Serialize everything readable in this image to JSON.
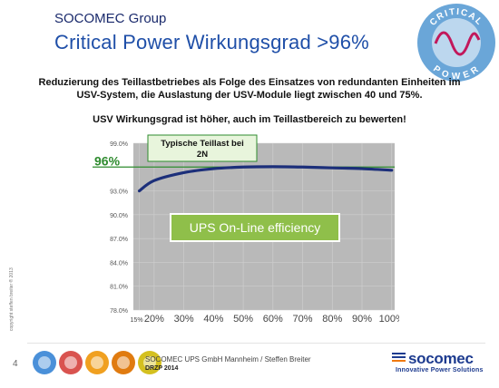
{
  "header": {
    "company": "SOCOMEC Group",
    "title": "Critical Power Wirkungsgrad >96%"
  },
  "badge": {
    "top_text": "CRITICAL",
    "bottom_text": "POWER",
    "colors": {
      "ring": "#6aa6d8",
      "inner": "#bcd7ee",
      "wave": "#c2185b"
    }
  },
  "text": {
    "paragraph1": "Reduzierung des Teillastbetriebes als Folge des Einsatzes von redundanten Einheiten im USV-System, die Auslastung der USV-Module liegt zwischen 40 und 75%.",
    "paragraph2": "USV Wirkungsgrad ist höher,  auch im Teillastbereich zu bewerten!"
  },
  "chart_data": {
    "type": "line",
    "x": [
      15,
      20,
      30,
      40,
      50,
      60,
      70,
      80,
      90,
      100
    ],
    "x_tick_labels": [
      "15%",
      "20%",
      "30%",
      "40%",
      "50%",
      "60%",
      "70%",
      "80%",
      "90%",
      "100%"
    ],
    "series": [
      {
        "values": [
          93.0,
          94.3,
          95.3,
          95.8,
          96.0,
          96.05,
          96.0,
          95.9,
          95.8,
          95.6
        ]
      }
    ],
    "y_ticks": [
      78.0,
      81.0,
      84.0,
      87.0,
      90.0,
      93.0,
      96.0,
      99.0
    ],
    "y_tick_labels": [
      "78.0%",
      "81.0%",
      "84.0%",
      "87.0%",
      "90.0%",
      "93.0%",
      "96%",
      "99.0%"
    ],
    "ylim": [
      78,
      99
    ],
    "xlim": [
      13,
      101
    ],
    "grid": true,
    "highlight_y": 96,
    "highlight_label": "96%",
    "annotation": "Typische Teillast bei 2N",
    "inset_label": "UPS On-Line efficiency",
    "colors": {
      "plot_bg": "#b9b9b9",
      "curve": "#1c2f7a",
      "grid": "#cfcfcf",
      "highlight": "#2e8b2e",
      "inset_bg": "#8fbf4a"
    }
  },
  "footer": {
    "page_number": "4",
    "company_line": "SOCOMEC UPS GmbH Mannheim / Steffen Breiter",
    "event": "DRZP 2014",
    "copyright": "copyright steffen breiter ® 2013",
    "brand": "socomec",
    "tagline": "Innovative Power Solutions",
    "logo_colors": [
      "#4a90d9",
      "#d9534f",
      "#f0a020",
      "#e07b10",
      "#d4c020"
    ],
    "brand_color": "#1d3b8f"
  }
}
